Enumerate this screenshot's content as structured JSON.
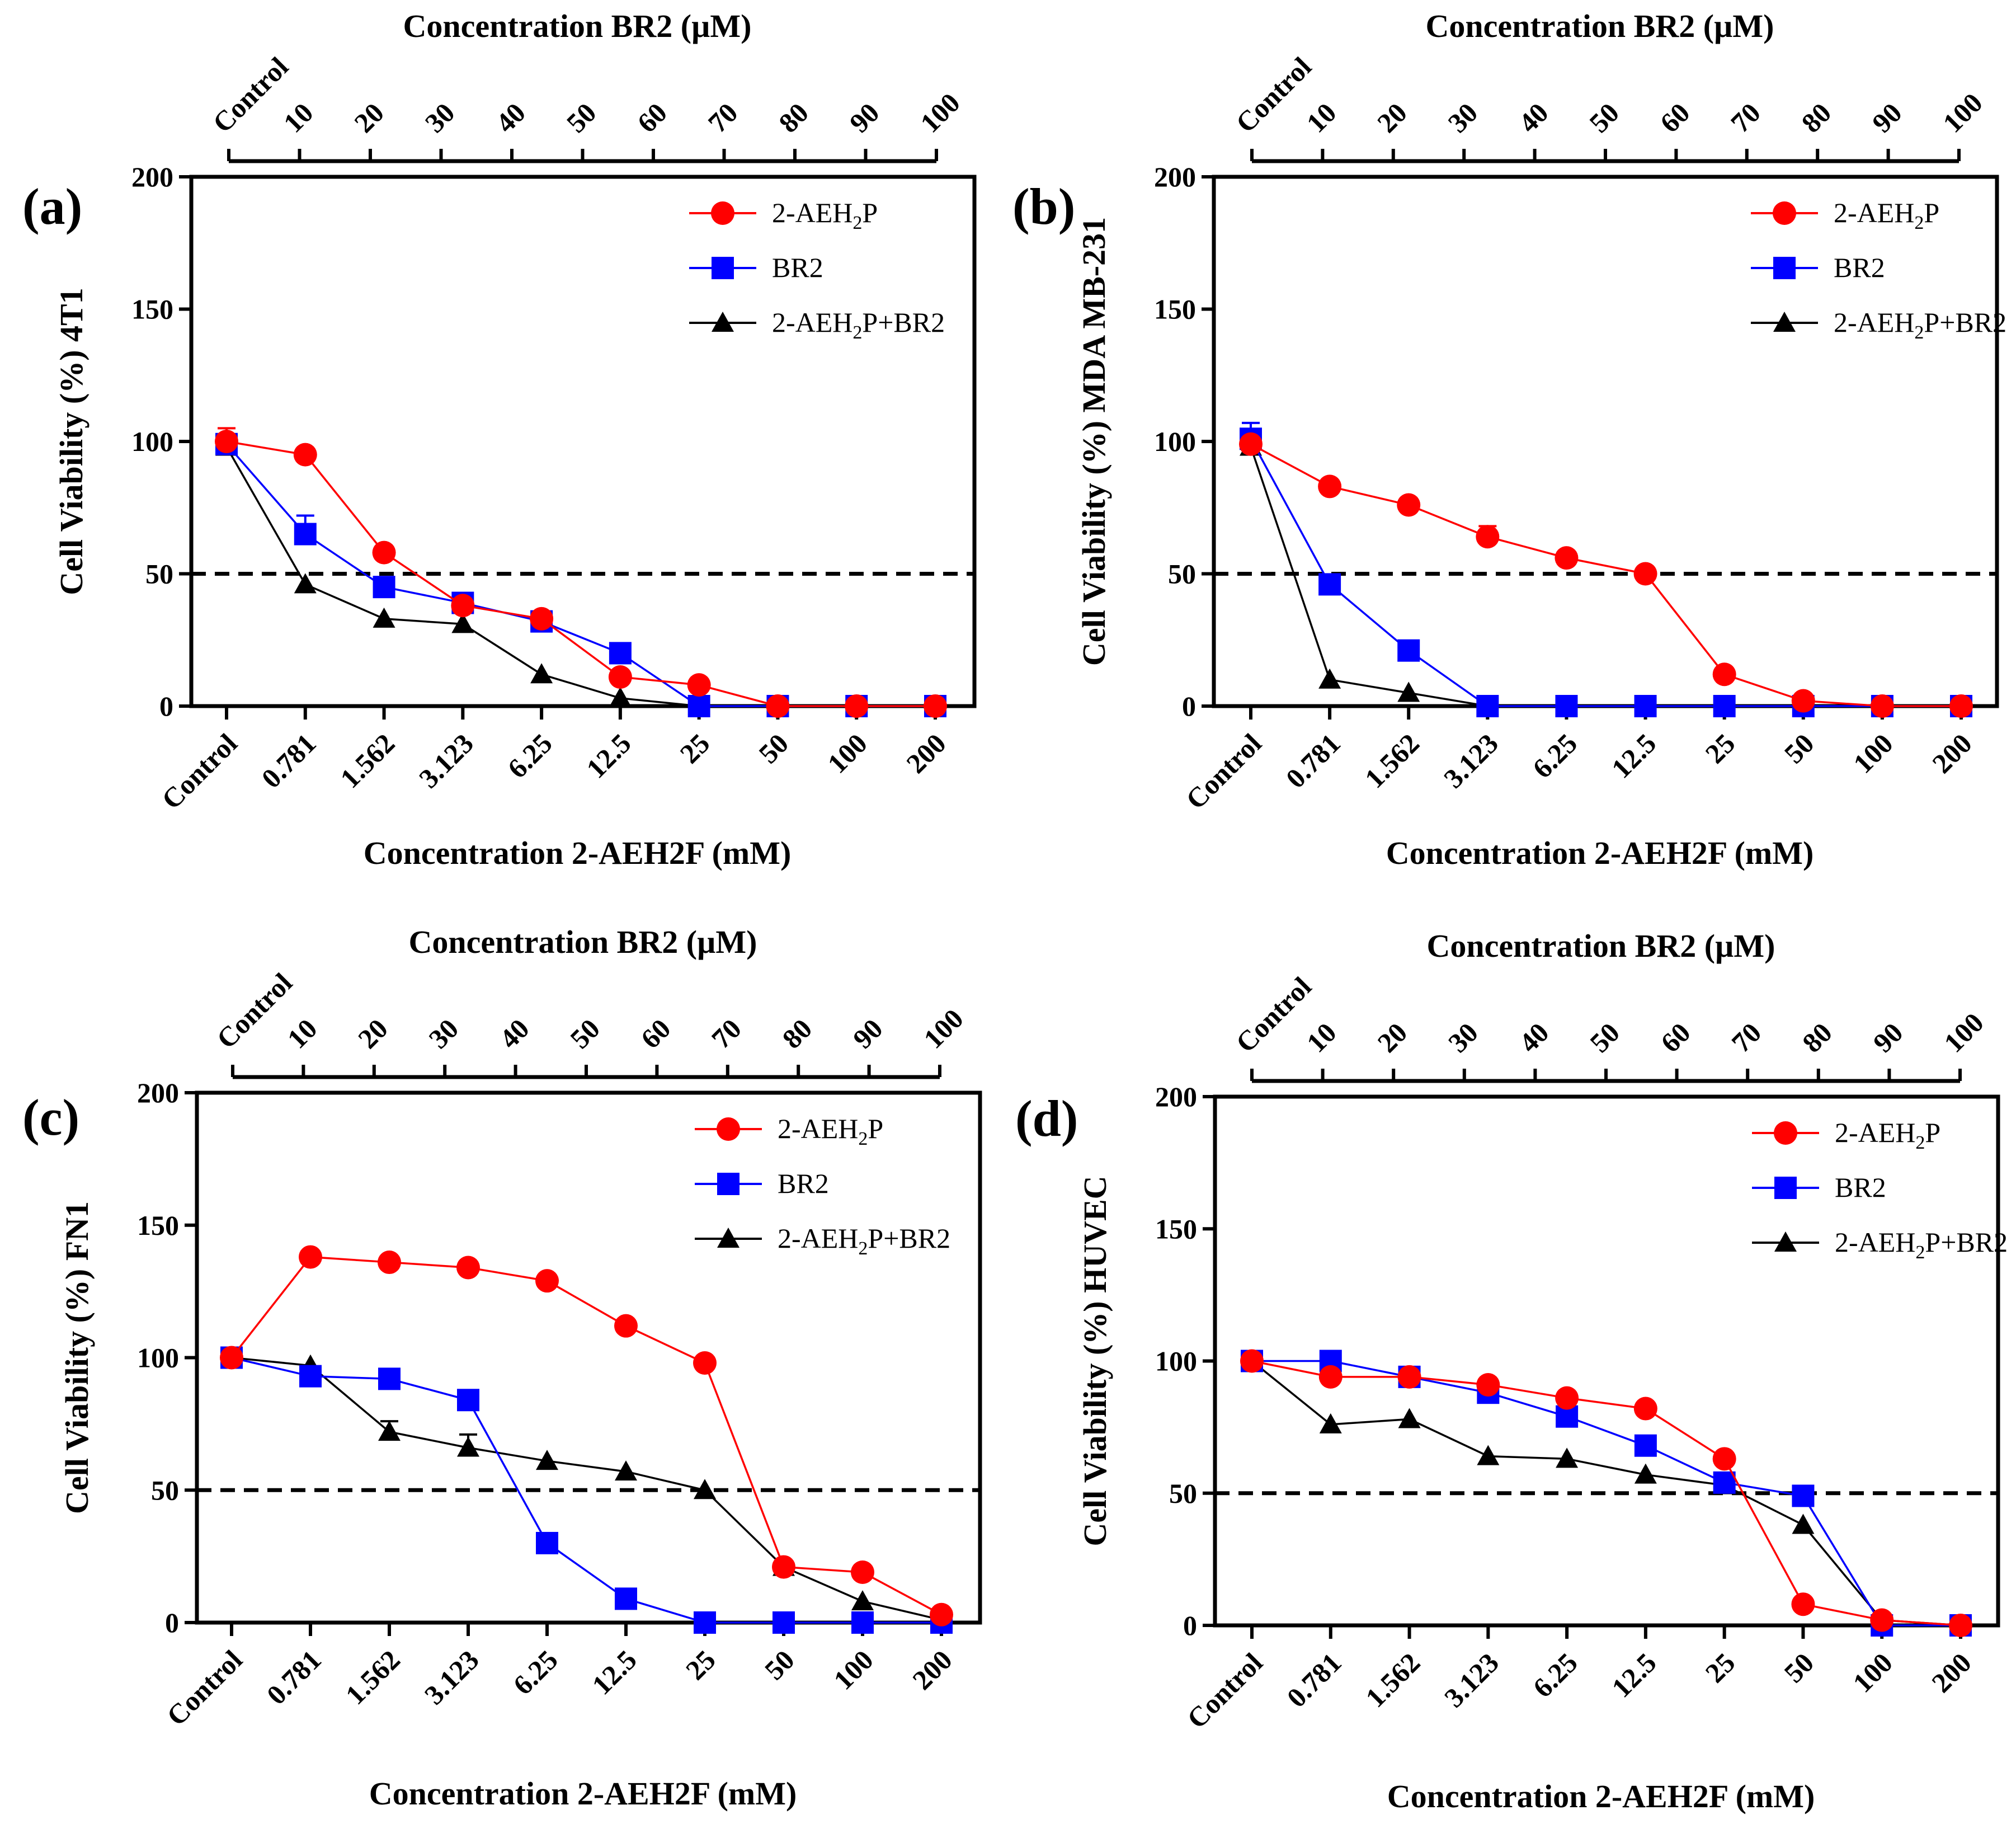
{
  "figure": {
    "x_bottom_title": "Concentration 2-AEH2F (mM)",
    "x_top_title": "Concentration BR2 (µM)",
    "x_bottom_categories": [
      "Control",
      "0.781",
      "1.562",
      "3.123",
      "6.25",
      "12.5",
      "25",
      "50",
      "100",
      "200"
    ],
    "x_top_categories": [
      "Control",
      "10",
      "20",
      "30",
      "40",
      "50",
      "60",
      "70",
      "80",
      "90",
      "100"
    ],
    "y_ticks": [
      "0",
      "50",
      "100",
      "150",
      "200"
    ],
    "reference_line_y": 50,
    "legend": [
      {
        "key": "aeh2p",
        "prefix": "2-AEH",
        "subscript": "2",
        "suffix": "P",
        "marker": "circle",
        "color": "#ff0000"
      },
      {
        "key": "br2",
        "prefix": "BR2",
        "subscript": "",
        "suffix": "",
        "marker": "square",
        "color": "#0000ff"
      },
      {
        "key": "combo",
        "prefix": "2-AEH",
        "subscript": "2",
        "suffix": "P+BR2",
        "marker": "triangle",
        "color": "#000000"
      }
    ]
  },
  "chart_data": [
    {
      "type": "line",
      "panel": "(a)",
      "title": "",
      "xlabel": "Concentration 2-AEH2F (mM)",
      "x2label": "Concentration BR2 (µM)",
      "ylabel": "Cell Viability (%) 4T1",
      "ylim": [
        0,
        200
      ],
      "categories": [
        "Control",
        "0.781",
        "1.562",
        "3.123",
        "6.25",
        "12.5",
        "25",
        "50",
        "100",
        "200"
      ],
      "series": [
        {
          "name": "2-AEH2P",
          "values": [
            100,
            95,
            58,
            38,
            33,
            11,
            8,
            0,
            0,
            0
          ],
          "errors": [
            5,
            0,
            0,
            0,
            0,
            0,
            0,
            0,
            0,
            0
          ]
        },
        {
          "name": "BR2",
          "values": [
            99,
            65,
            45,
            39,
            32,
            20,
            0,
            0,
            0,
            0
          ],
          "errors": [
            0,
            7,
            0,
            0,
            0,
            0,
            0,
            0,
            0,
            0
          ]
        },
        {
          "name": "2-AEH2P+BR2",
          "values": [
            98,
            46,
            33,
            31,
            12,
            3,
            0,
            0,
            0,
            0
          ],
          "errors": [
            0,
            0,
            0,
            0,
            0,
            0,
            0,
            0,
            0,
            0
          ]
        }
      ]
    },
    {
      "type": "line",
      "panel": "(b)",
      "title": "",
      "xlabel": "Concentration 2-AEH2F (mM)",
      "x2label": "Concentration BR2 (µM)",
      "ylabel": "Cell Viability (%) MDA MB-231",
      "ylim": [
        0,
        200
      ],
      "categories": [
        "Control",
        "0.781",
        "1.562",
        "3.123",
        "6.25",
        "12.5",
        "25",
        "50",
        "100",
        "200"
      ],
      "series": [
        {
          "name": "2-AEH2P",
          "values": [
            99,
            83,
            76,
            64,
            56,
            50,
            12,
            2,
            0,
            0
          ],
          "errors": [
            0,
            0,
            0,
            4,
            0,
            0,
            0,
            0,
            0,
            0
          ]
        },
        {
          "name": "BR2",
          "values": [
            101,
            46,
            21,
            0,
            0,
            0,
            0,
            0,
            0,
            0
          ],
          "errors": [
            6,
            0,
            0,
            0,
            0,
            0,
            0,
            0,
            0,
            0
          ]
        },
        {
          "name": "2-AEH2P+BR2",
          "values": [
            98,
            10,
            5,
            0,
            0,
            0,
            0,
            0,
            0,
            0
          ],
          "errors": [
            0,
            0,
            0,
            0,
            0,
            0,
            0,
            0,
            0,
            0
          ]
        }
      ]
    },
    {
      "type": "line",
      "panel": "(c)",
      "title": "",
      "xlabel": "Concentration 2-AEH2F (mM)",
      "x2label": "Concentration BR2 (µM)",
      "ylabel": "Cell Viability (%) FN1",
      "ylim": [
        0,
        200
      ],
      "categories": [
        "Control",
        "0.781",
        "1.562",
        "3.123",
        "6.25",
        "12.5",
        "25",
        "50",
        "100",
        "200"
      ],
      "series": [
        {
          "name": "2-AEH2P",
          "values": [
            100,
            138,
            136,
            134,
            129,
            112,
            98,
            21,
            19,
            3
          ],
          "errors": [
            0,
            0,
            0,
            0,
            0,
            0,
            0,
            0,
            0,
            0
          ]
        },
        {
          "name": "BR2",
          "values": [
            100,
            93,
            92,
            84,
            30,
            9,
            0,
            0,
            0,
            0
          ],
          "errors": [
            0,
            0,
            0,
            0,
            0,
            0,
            0,
            0,
            0,
            0
          ]
        },
        {
          "name": "2-AEH2P+BR2",
          "values": [
            100,
            97,
            72,
            66,
            61,
            57,
            50,
            21,
            8,
            1
          ],
          "errors": [
            0,
            0,
            4,
            5,
            0,
            0,
            0,
            0,
            0,
            0
          ]
        }
      ]
    },
    {
      "type": "line",
      "panel": "(d)",
      "title": "",
      "xlabel": "Concentration 2-AEH2F (mM)",
      "x2label": "Concentration BR2 (µM)",
      "ylabel": "Cell Viability (%) HUVEC",
      "ylim": [
        0,
        200
      ],
      "categories": [
        "Control",
        "0.781",
        "1.562",
        "3.123",
        "6.25",
        "12.5",
        "25",
        "50",
        "100",
        "200"
      ],
      "series": [
        {
          "name": "2-AEH2P",
          "values": [
            100,
            94,
            94,
            91,
            86,
            82,
            63,
            8,
            2,
            0
          ],
          "errors": [
            0,
            0,
            0,
            0,
            0,
            0,
            0,
            0,
            0,
            0
          ]
        },
        {
          "name": "BR2",
          "values": [
            100,
            100,
            94,
            88,
            79,
            68,
            54,
            49,
            0,
            0
          ],
          "errors": [
            0,
            0,
            0,
            0,
            0,
            0,
            0,
            0,
            0,
            0
          ]
        },
        {
          "name": "2-AEH2P+BR2",
          "values": [
            100,
            76,
            78,
            64,
            63,
            57,
            53,
            38,
            2,
            0
          ],
          "errors": [
            0,
            0,
            0,
            0,
            0,
            0,
            0,
            0,
            0,
            0
          ]
        }
      ]
    }
  ]
}
